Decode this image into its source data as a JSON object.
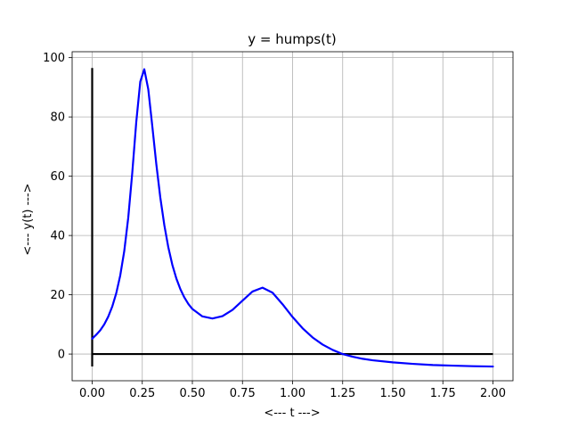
{
  "chart_data": {
    "type": "line",
    "title": "y = humps(t)",
    "xlabel": "<--- t --->",
    "ylabel": "<--- y(t) --->",
    "xlim": [
      -0.1,
      2.1
    ],
    "ylim": [
      -9,
      102
    ],
    "xticks": [
      "0.00",
      "0.25",
      "0.50",
      "0.75",
      "1.00",
      "1.25",
      "1.50",
      "1.75",
      "2.00"
    ],
    "xtick_values": [
      0,
      0.25,
      0.5,
      0.75,
      1.0,
      1.25,
      1.5,
      1.75,
      2.0
    ],
    "yticks": [
      "0",
      "20",
      "40",
      "60",
      "80",
      "100"
    ],
    "ytick_values": [
      0,
      20,
      40,
      60,
      80,
      100
    ],
    "grid": true,
    "series": [
      {
        "color": "#0000ff",
        "x": [
          0,
          0.02,
          0.04,
          0.06,
          0.08,
          0.1,
          0.12,
          0.14,
          0.16,
          0.18,
          0.2,
          0.22,
          0.24,
          0.26,
          0.28,
          0.3,
          0.32,
          0.34,
          0.36,
          0.38,
          0.4,
          0.42,
          0.44,
          0.46,
          0.48,
          0.5,
          0.55,
          0.6,
          0.65,
          0.7,
          0.75,
          0.8,
          0.85,
          0.9,
          0.95,
          1.0,
          1.05,
          1.1,
          1.15,
          1.2,
          1.25,
          1.3,
          1.35,
          1.4,
          1.5,
          1.6,
          1.7,
          1.8,
          1.9,
          2.0
        ],
        "y": [
          5.2,
          6.5,
          8.0,
          10.0,
          12.6,
          16.0,
          20.5,
          26.5,
          34.7,
          46.0,
          61.1,
          78.3,
          91.9,
          96.1,
          89.3,
          76.9,
          64.1,
          52.8,
          43.5,
          36.0,
          30.1,
          25.5,
          21.9,
          19.1,
          16.9,
          15.2,
          12.7,
          12.0,
          12.8,
          14.9,
          18.0,
          21.1,
          22.4,
          20.7,
          16.8,
          12.5,
          8.7,
          5.6,
          3.2,
          1.4,
          0.0,
          -0.9,
          -1.6,
          -2.1,
          -2.8,
          -3.3,
          -3.7,
          -3.9,
          -4.1,
          -4.2
        ]
      }
    ],
    "reference_lines": [
      {
        "orientation": "horizontal",
        "color": "#000000",
        "y": 0,
        "x_from": 0,
        "x_to": 2
      },
      {
        "orientation": "vertical",
        "color": "#000000",
        "x": 0,
        "y_from": -4.2,
        "y_to": 96.5
      }
    ]
  },
  "colors": {
    "grid": "#b0b0b0",
    "axes": "#000000",
    "curve": "#0000ff"
  }
}
